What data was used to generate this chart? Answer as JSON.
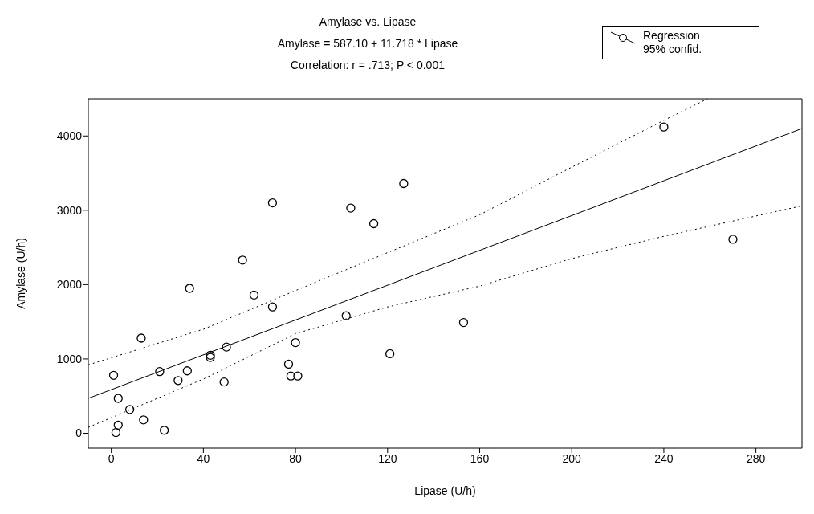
{
  "chart_data": {
    "type": "scatter",
    "title": "Amylase vs. Lipase",
    "subtitle": "Amylase = 587.10 + 11.718 * Lipase\nCorrelation: r = .713; P < 0.001",
    "xlabel": "Lipase (U/h)",
    "ylabel": "Amylase (U/h)",
    "xlim": [
      -10,
      300
    ],
    "xticks": [
      0,
      40,
      80,
      120,
      160,
      200,
      240,
      280
    ],
    "ylim": [
      -200,
      4500
    ],
    "yticks": [
      0,
      1000,
      2000,
      3000,
      4000
    ],
    "grid": false,
    "legend": "top right",
    "series": [
      {
        "marker": "circle",
        "color": "#000000",
        "x": [
          1,
          2,
          3,
          3,
          8,
          13,
          14,
          21,
          23,
          29,
          33,
          34,
          43,
          43,
          49,
          50,
          57,
          62,
          70,
          70,
          77,
          78,
          81,
          80,
          102,
          104,
          114,
          121,
          127,
          153,
          240,
          270
        ],
        "values": [
          780,
          10,
          110,
          470,
          320,
          1280,
          180,
          830,
          40,
          710,
          840,
          1950,
          1050,
          1020,
          690,
          1160,
          2330,
          1860,
          1700,
          3100,
          930,
          770,
          770,
          1220,
          1580,
          3030,
          2820,
          1070,
          3360,
          1490,
          4120,
          2610
        ]
      },
      {
        "type": "line",
        "name": "Regression",
        "color": "#000000",
        "line_style": "solid",
        "marker": "none",
        "x": [
          -10,
          300
        ],
        "values": [
          470,
          4100
        ]
      },
      {
        "type": "line",
        "name": "95% confid.",
        "color": "#000000",
        "line_style": "dotted",
        "marker": "none",
        "x": [
          -10,
          40,
          80,
          120,
          160,
          200,
          240,
          259
        ],
        "values": [
          920,
          1400,
          1920,
          2430,
          2940,
          3580,
          4210,
          4500
        ]
      },
      {
        "type": "line",
        "color": "#000000",
        "line_style": "dotted",
        "marker": "none",
        "x": [
          -10,
          40,
          80,
          120,
          160,
          200,
          240,
          300
        ],
        "values": [
          80,
          730,
          1340,
          1700,
          1980,
          2350,
          2650,
          3060
        ]
      }
    ]
  }
}
